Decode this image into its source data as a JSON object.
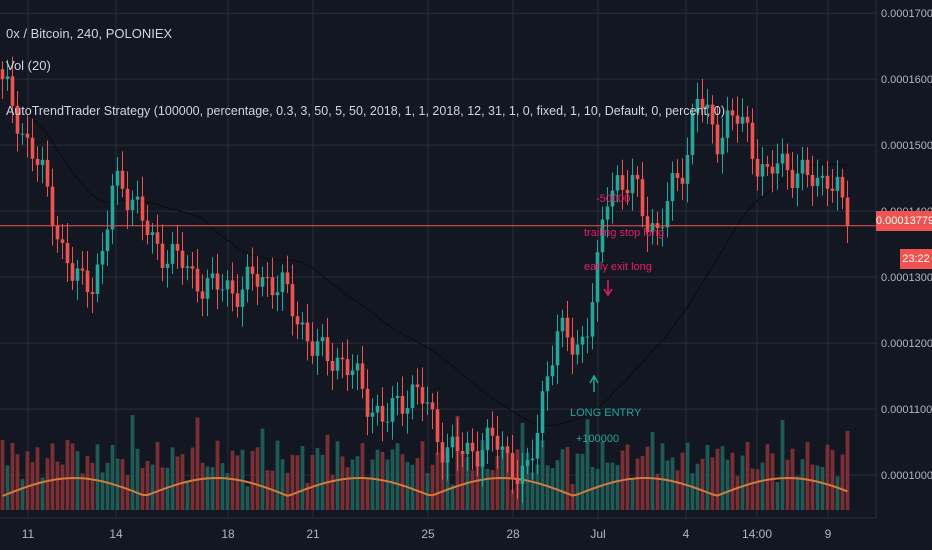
{
  "header": {
    "symbol_line": "0x / Bitcoin, 240, POLONIEX",
    "volume_line": "Vol (20)",
    "strategy_line": "AutoTrendTrader Strategy (100000, percentage, 0.3, 3, 50, 5, 50, 2018, 1, 1, 2018, 12, 31, 1, 0, fixed, 1, 10, Default, 0, percent, 0)"
  },
  "price_scale": {
    "labels": [
      "0.00017000",
      "0.00016000",
      "0.00015000",
      "0.00014000",
      "0.00013000",
      "0.00012000",
      "0.00011000",
      "0.00010000"
    ]
  },
  "time_scale": {
    "labels": [
      "11",
      "14",
      "18",
      "21",
      "25",
      "28",
      "Jul",
      "4",
      "14:00",
      "9"
    ]
  },
  "last_price": {
    "label": "0.00013779",
    "countdown": "23:22"
  },
  "signals": {
    "entry_label": "LONG ENTRY",
    "entry_size": "+100000",
    "exit_size": "-50000",
    "trailing_label": "trailing stop long",
    "early_exit_label": "early exit long"
  },
  "colors": {
    "background": "#131722",
    "grid": "#2a2e39",
    "up": "#26a69a",
    "down": "#ef5350",
    "vol_up": "#1f5a55",
    "vol_down": "#7a2f35",
    "vol_ma": "#d37b3f",
    "ma_line": "#0b0d12",
    "signal_long": "#26a69a",
    "signal_exit": "#e91e63",
    "last_price_line": "#ef5350"
  },
  "chart_data": {
    "type": "candlestick",
    "y_range": [
      9.35e-05,
      0.000172
    ],
    "close_series": [
      0.000159,
      0.000156,
      0.000152,
      0.000149,
      0.000145,
      0.00014,
      0.000134,
      0.00013,
      0.000129,
      0.00013,
      0.000133,
      0.000144,
      0.000144,
      0.000142,
      0.000138,
      0.000135,
      0.000134,
      0.000133,
      0.000132,
      0.00013,
      0.000129,
      0.000128,
      0.000129,
      0.000128,
      0.000128,
      0.00013,
      0.00013,
      0.000129,
      0.000128,
      0.000125,
      0.000122,
      0.000119,
      0.000118,
      0.000118,
      0.000117,
      0.000115,
      0.000112,
      0.00011,
      0.000108,
      0.00011,
      0.000112,
      0.000113,
      0.000111,
      0.000107,
      0.000104,
      0.000104,
      0.000103,
      0.000104,
      0.000105,
      0.000105,
      0.000103,
      0.000101,
      9.9e-05,
      0.000105,
      0.000115,
      0.000121,
      0.000121,
      0.000119,
      0.000122,
      0.000129,
      0.000142,
      0.000145,
      0.000144,
      0.000143,
      0.000139,
      0.000137,
      0.00014,
      0.000145,
      0.000148,
      0.000158,
      0.000154,
      0.000151,
      0.000154,
      0.000154,
      0.000152,
      0.000148,
      0.000145,
      0.000147,
      0.000147,
      0.000146,
      0.000145,
      0.000144,
      0.000146,
      0.000143,
      0.0001378
    ],
    "volume_ma_label": "Vol (20)",
    "last_close": 0.00013779
  }
}
